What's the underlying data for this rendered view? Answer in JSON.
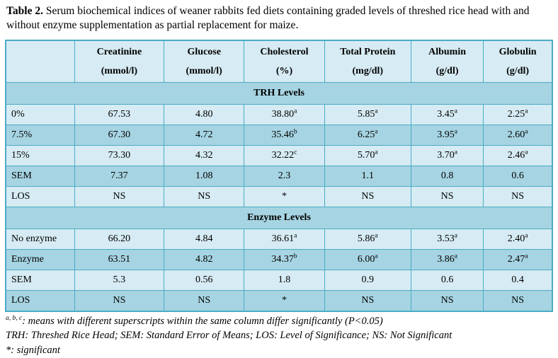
{
  "title": {
    "label": "Table 2.",
    "text": " Serum biochemical indices of weaner rabbits fed diets containing graded levels of threshed rice head with and without enzyme supplementation as partial replacement for maize."
  },
  "colors": {
    "border": "#4bacc6",
    "row_light": "#d6ebf3",
    "row_medium": "#a6d4e2",
    "text": "#000000"
  },
  "table": {
    "columns": [
      {
        "name": "",
        "unit": ""
      },
      {
        "name": "Creatinine",
        "unit": "(mmol/l)"
      },
      {
        "name": "Glucose",
        "unit": "(mmol/l)"
      },
      {
        "name": "Cholesterol",
        "unit": "(%)"
      },
      {
        "name": "Total Protein",
        "unit": "(mg/dl)"
      },
      {
        "name": "Albumin",
        "unit": "(g/dl)"
      },
      {
        "name": "Globulin",
        "unit": "(g/dl)"
      }
    ],
    "rows": [
      {
        "type": "section",
        "label": "TRH Levels",
        "shade": "medium"
      },
      {
        "type": "data",
        "label": "0%",
        "shade": "light",
        "cells": [
          [
            "67.53",
            ""
          ],
          [
            "4.80",
            ""
          ],
          [
            "38.80",
            "a"
          ],
          [
            "5.85",
            "a"
          ],
          [
            "3.45",
            "a"
          ],
          [
            "2.25",
            "a"
          ]
        ]
      },
      {
        "type": "data",
        "label": "7.5%",
        "shade": "medium",
        "cells": [
          [
            "67.30",
            ""
          ],
          [
            "4.72",
            ""
          ],
          [
            "35.46",
            "b"
          ],
          [
            "6.25",
            "a"
          ],
          [
            "3.95",
            "a"
          ],
          [
            "2.60",
            "a"
          ]
        ]
      },
      {
        "type": "data",
        "label": "15%",
        "shade": "light",
        "cells": [
          [
            "73.30",
            ""
          ],
          [
            "4.32",
            ""
          ],
          [
            "32.22",
            "c"
          ],
          [
            "5.70",
            "a"
          ],
          [
            "3.70",
            "a"
          ],
          [
            "2.46",
            "a"
          ]
        ]
      },
      {
        "type": "data",
        "label": "SEM",
        "shade": "medium",
        "cells": [
          [
            "7.37",
            ""
          ],
          [
            "1.08",
            ""
          ],
          [
            "2.3",
            ""
          ],
          [
            "1.1",
            ""
          ],
          [
            "0.8",
            ""
          ],
          [
            "0.6",
            ""
          ]
        ]
      },
      {
        "type": "data",
        "label": "LOS",
        "shade": "light",
        "cells": [
          [
            "NS",
            ""
          ],
          [
            "NS",
            ""
          ],
          [
            "*",
            ""
          ],
          [
            "NS",
            ""
          ],
          [
            "NS",
            ""
          ],
          [
            "NS",
            ""
          ]
        ]
      },
      {
        "type": "section",
        "label": "Enzyme Levels",
        "shade": "medium"
      },
      {
        "type": "data",
        "label": "No enzyme",
        "shade": "light",
        "cells": [
          [
            "66.20",
            ""
          ],
          [
            "4.84",
            ""
          ],
          [
            "36.61",
            "a"
          ],
          [
            "5.86",
            "a"
          ],
          [
            "3.53",
            "a"
          ],
          [
            "2.40",
            "a"
          ]
        ]
      },
      {
        "type": "data",
        "label": "Enzyme",
        "shade": "medium",
        "cells": [
          [
            "63.51",
            ""
          ],
          [
            "4.82",
            ""
          ],
          [
            "34.37",
            "b"
          ],
          [
            "6.00",
            "a"
          ],
          [
            "3.86",
            "a"
          ],
          [
            "2.47",
            "a"
          ]
        ]
      },
      {
        "type": "data",
        "label": "SEM",
        "shade": "light",
        "cells": [
          [
            "5.3",
            ""
          ],
          [
            "0.56",
            ""
          ],
          [
            "1.8",
            ""
          ],
          [
            "0.9",
            ""
          ],
          [
            "0.6",
            ""
          ],
          [
            "0.4",
            ""
          ]
        ]
      },
      {
        "type": "data",
        "label": "LOS",
        "shade": "medium",
        "cells": [
          [
            "NS",
            ""
          ],
          [
            "NS",
            ""
          ],
          [
            "*",
            ""
          ],
          [
            "NS",
            ""
          ],
          [
            "NS",
            ""
          ],
          [
            "NS",
            ""
          ]
        ]
      }
    ]
  },
  "footnotes": [
    {
      "sup": "a, b, c",
      "text": ": means with different superscripts within the same column differ significantly (P<0.05)"
    },
    {
      "sup": "",
      "text": "TRH: Threshed Rice Head; SEM: Standard Error of Means; LOS: Level of Significance; NS: Not Significant"
    },
    {
      "sup": "",
      "text": "*: significant"
    }
  ]
}
